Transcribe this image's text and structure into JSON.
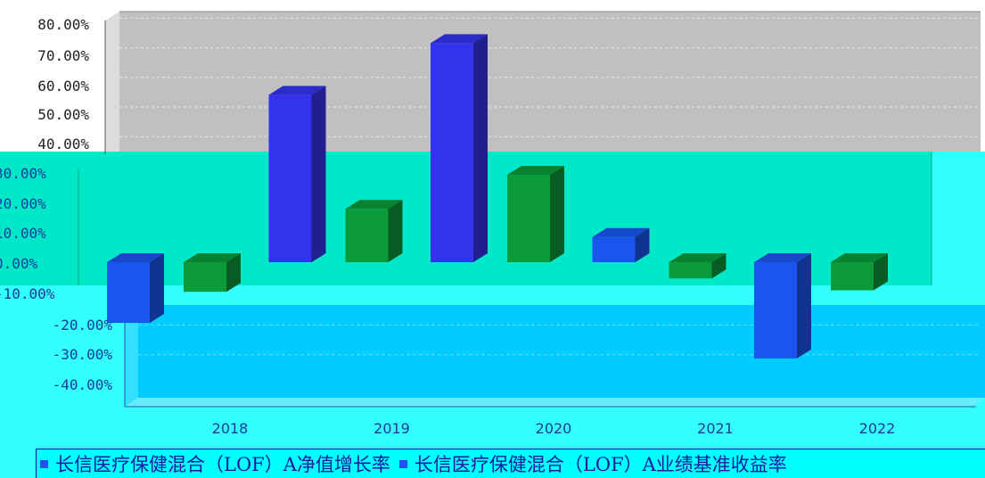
{
  "chart_data": {
    "type": "bar",
    "categories": [
      "2018",
      "2019",
      "2020",
      "2021",
      "2022"
    ],
    "series": [
      {
        "name": "长信医疗保健混合（LOF）A净值增长率",
        "values": [
          -20.5,
          56.5,
          74.0,
          8.5,
          -32.5
        ],
        "color": "#1a55ee"
      },
      {
        "name": "长信医疗保健混合（LOF）A业绩基准收益率",
        "values": [
          -10.0,
          18.0,
          29.5,
          -5.5,
          -9.5
        ],
        "color": "#0a9a3a"
      }
    ],
    "y_ticks": [
      "80.00%",
      "70.00%",
      "60.00%",
      "50.00%",
      "40.00%",
      "30.00%",
      "20.00%",
      "10.00%",
      "0.00%",
      "-10.00%",
      "-20.00%",
      "-30.00%",
      "-40.00%"
    ],
    "ylim": [
      -40,
      80
    ],
    "grid": true,
    "legend_position": "bottom"
  }
}
